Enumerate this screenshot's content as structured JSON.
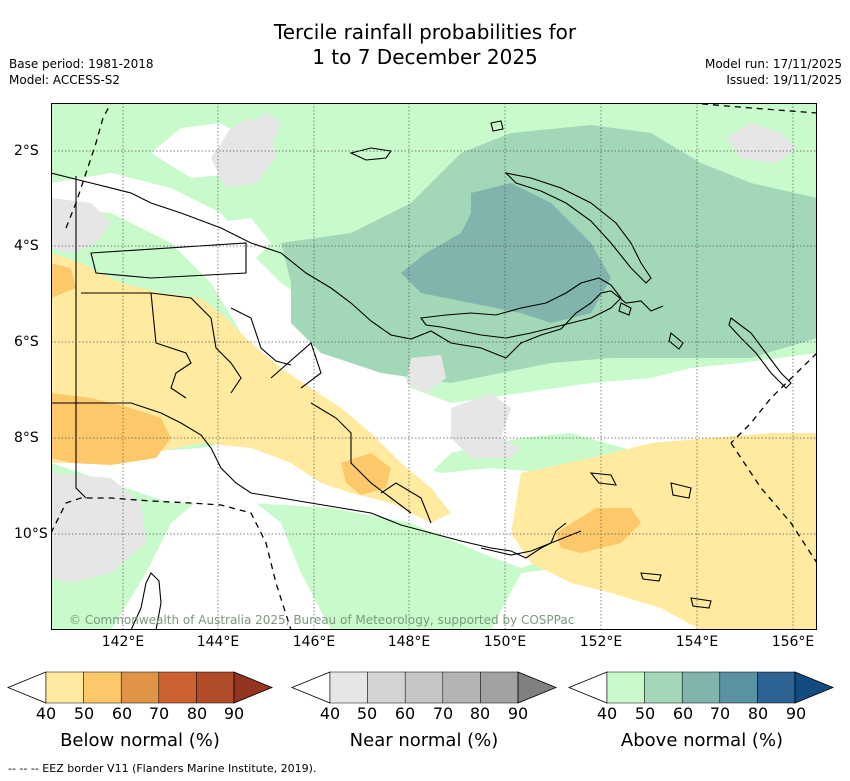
{
  "title": {
    "line1": "Tercile rainfall probabilities for",
    "line2": "1 to 7 December 2025"
  },
  "meta": {
    "base_period": "Base period: 1981-2018",
    "model": "Model: ACCESS-S2",
    "model_run": "Model run: 17/11/2025",
    "issued": "Issued: 19/11/2025"
  },
  "map": {
    "lon_range": [
      140.6,
      156.6
    ],
    "lat_range": [
      -12.0,
      -1.0
    ],
    "lon_ticks": [
      "142°E",
      "144°E",
      "146°E",
      "148°E",
      "150°E",
      "152°E",
      "154°E",
      "156°E"
    ],
    "lat_ticks": [
      "2°S",
      "4°S",
      "6°S",
      "8°S",
      "10°S"
    ],
    "copyright": "© Commonwealth of Australia 2025, Bureau of Meteorology, supported by COSPPac"
  },
  "colorbars": [
    {
      "label": "Below normal (%)",
      "ticks": [
        "40",
        "50",
        "60",
        "70",
        "80",
        "90"
      ],
      "colors": [
        "#ffffff",
        "#ffeaa0",
        "#fcc86a",
        "#e09448",
        "#cc6232",
        "#b04c28",
        "#953420"
      ]
    },
    {
      "label": "Near normal (%)",
      "ticks": [
        "40",
        "50",
        "60",
        "70",
        "80",
        "90"
      ],
      "colors": [
        "#ffffff",
        "#e6e6e6",
        "#d4d4d4",
        "#c6c6c6",
        "#b4b4b4",
        "#a2a2a2",
        "#808080"
      ]
    },
    {
      "label": "Above normal (%)",
      "ticks": [
        "40",
        "50",
        "60",
        "70",
        "80",
        "90"
      ],
      "colors": [
        "#ffffff",
        "#c8facc",
        "#a2d8b8",
        "#80b4ac",
        "#5a92a2",
        "#2c6294",
        "#134a80"
      ]
    }
  ],
  "footer": "--  --  -- EEZ border V11 (Flanders Marine Institute, 2019)."
}
